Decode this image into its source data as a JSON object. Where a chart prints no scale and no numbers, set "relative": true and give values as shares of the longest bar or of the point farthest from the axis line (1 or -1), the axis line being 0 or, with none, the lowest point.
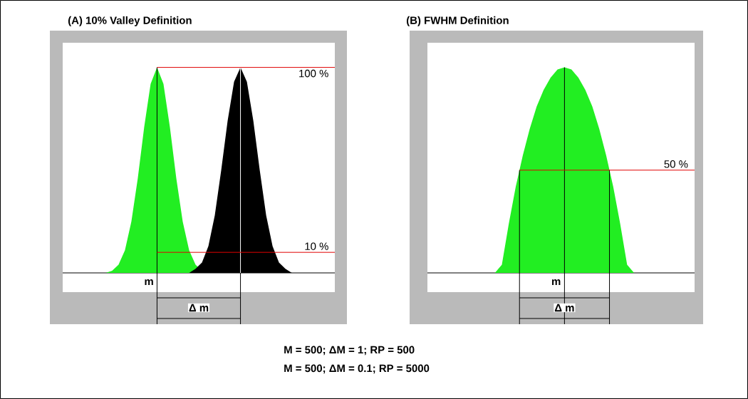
{
  "chart_data": [
    {
      "type": "area",
      "relative": true,
      "title": "(A) 10% Valley Definition",
      "categories": [
        null,
        null,
        null,
        null,
        null,
        null,
        null,
        null,
        null,
        null,
        null,
        null,
        null,
        null,
        null,
        null,
        null,
        null,
        null,
        null,
        null,
        null,
        null,
        null,
        null,
        null,
        null,
        null,
        null,
        null,
        null,
        null,
        null,
        null,
        null,
        null,
        null,
        null,
        null,
        null,
        null,
        null
      ],
      "series": [
        {
          "color": "#22ee22",
          "values": [
            0,
            0,
            0,
            0,
            0,
            0,
            0,
            0.01,
            0.04,
            0.11,
            0.25,
            0.46,
            0.71,
            0.92,
            1,
            0.92,
            0.71,
            0.46,
            0.25,
            0.11,
            0.04,
            0.01,
            0,
            0,
            0,
            0,
            0,
            0,
            0,
            0,
            0,
            0,
            0,
            0,
            0,
            0,
            0,
            0,
            0,
            0,
            0,
            0
          ]
        },
        {
          "color": "#000000",
          "values": [
            null,
            null,
            null,
            null,
            null,
            null,
            null,
            null,
            null,
            null,
            null,
            null,
            null,
            null,
            null,
            null,
            null,
            null,
            null,
            0,
            0.02,
            0.05,
            0.13,
            0.28,
            0.5,
            0.74,
            0.93,
            1,
            0.93,
            0.74,
            0.5,
            0.28,
            0.13,
            0.05,
            0.02,
            0,
            null,
            null,
            null,
            null,
            null,
            null
          ]
        }
      ],
      "ref_lines": [
        {
          "axis": "y",
          "value": 1,
          "label": "100 %",
          "color": "#e00000"
        },
        {
          "axis": "y",
          "value": 0.1,
          "label": "10 %",
          "color": "#e00000"
        }
      ],
      "annotations": [
        "m",
        "Δ m"
      ]
    },
    {
      "type": "area",
      "relative": true,
      "title": "(B) FWHM Definition",
      "categories": [
        null,
        null,
        null,
        null,
        null,
        null,
        null,
        null,
        null,
        null,
        null,
        null,
        null,
        null,
        null,
        null,
        null,
        null,
        null,
        null,
        null,
        null,
        null,
        null,
        null,
        null,
        null,
        null,
        null,
        null,
        null,
        null,
        null,
        null,
        null,
        null,
        null,
        null
      ],
      "series": [
        {
          "color": "#22ee22",
          "values": [
            0,
            0,
            0,
            0,
            0,
            0,
            0,
            0,
            0,
            0,
            0.04,
            0.24,
            0.42,
            0.57,
            0.7,
            0.81,
            0.89,
            0.95,
            0.99,
            1,
            0.99,
            0.95,
            0.89,
            0.81,
            0.7,
            0.57,
            0.42,
            0.24,
            0.04,
            0,
            0,
            0,
            0,
            0,
            0,
            0,
            0,
            0
          ]
        }
      ],
      "ref_lines": [
        {
          "axis": "y",
          "value": 0.5,
          "label": "50 %",
          "color": "#e00000"
        }
      ],
      "annotations": [
        "m",
        "Δ m",
        "M = 500; ΔM = 1; RP = 500",
        "M = 500; ΔM = 0.1; RP = 5000"
      ]
    }
  ]
}
